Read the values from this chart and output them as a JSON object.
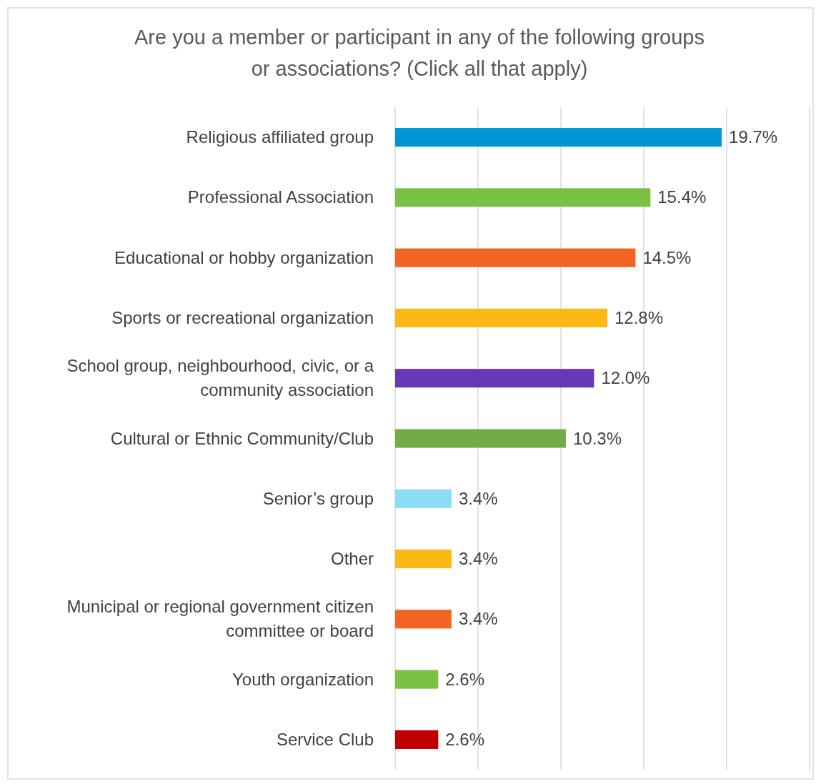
{
  "chart_data": {
    "type": "bar",
    "orientation": "horizontal",
    "title": "Are you a member or participant in any of the following groups or associations? (Click all that apply)",
    "categories": [
      "Religious affiliated group",
      "Professional Association",
      "Educational or hobby organization",
      "Sports or recreational organization",
      "School group, neighbourhood, civic, or a community association",
      "Cultural or Ethnic Community/Club",
      "Senior’s group",
      "Other",
      "Municipal or regional government citizen committee or board",
      "Youth organization",
      "Service Club"
    ],
    "values": [
      19.7,
      15.4,
      14.5,
      12.8,
      12.0,
      10.3,
      3.4,
      3.4,
      3.4,
      2.6,
      2.6
    ],
    "value_labels": [
      "19.7%",
      "15.4%",
      "14.5%",
      "12.8%",
      "12.0%",
      "10.3%",
      "3.4%",
      "3.4%",
      "3.4%",
      "2.6%",
      "2.6%"
    ],
    "colors": [
      "#0096d6",
      "#7ac143",
      "#f26522",
      "#fbb917",
      "#6639b7",
      "#70ad47",
      "#8ddcf7",
      "#fbb917",
      "#f26522",
      "#7ac143",
      "#c00000"
    ],
    "xlim": [
      0,
      25
    ],
    "xticks": [
      {
        "value": 0,
        "label": null
      },
      {
        "value": 5,
        "label": null
      },
      {
        "value": 10,
        "label": null
      },
      {
        "value": 15,
        "label": null
      },
      {
        "value": 20,
        "label": null
      },
      {
        "value": 25,
        "label": null
      }
    ],
    "grid": "x",
    "tick_labels": "y"
  }
}
